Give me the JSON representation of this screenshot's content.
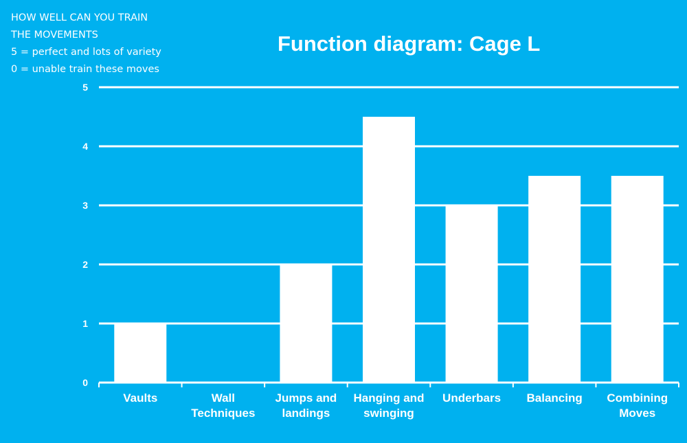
{
  "note": {
    "line1": "HOW WELL CAN YOU TRAIN",
    "line2": "THE MOVEMENTS",
    "line3": "5 = perfect and lots of variety",
    "line4": "0 = unable train these moves"
  },
  "colors": {
    "background": "#00b1ef",
    "bar": "#ffffff",
    "text": "#ffffff"
  },
  "chart_data": {
    "type": "bar",
    "title": "Function diagram: Cage L",
    "categories": [
      [
        "Vaults"
      ],
      [
        "Wall",
        "Techniques"
      ],
      [
        "Jumps and",
        "landings"
      ],
      [
        "Hanging and",
        "swinging"
      ],
      [
        "Underbars"
      ],
      [
        "Balancing"
      ],
      [
        "Combining",
        "Moves"
      ]
    ],
    "values": [
      1,
      0,
      2,
      4.5,
      3,
      3.5,
      3.5
    ],
    "ylim": [
      0,
      5
    ],
    "yticks": [
      "0",
      "1",
      "2",
      "3",
      "4",
      "5"
    ],
    "grid": true,
    "legend": "none"
  }
}
